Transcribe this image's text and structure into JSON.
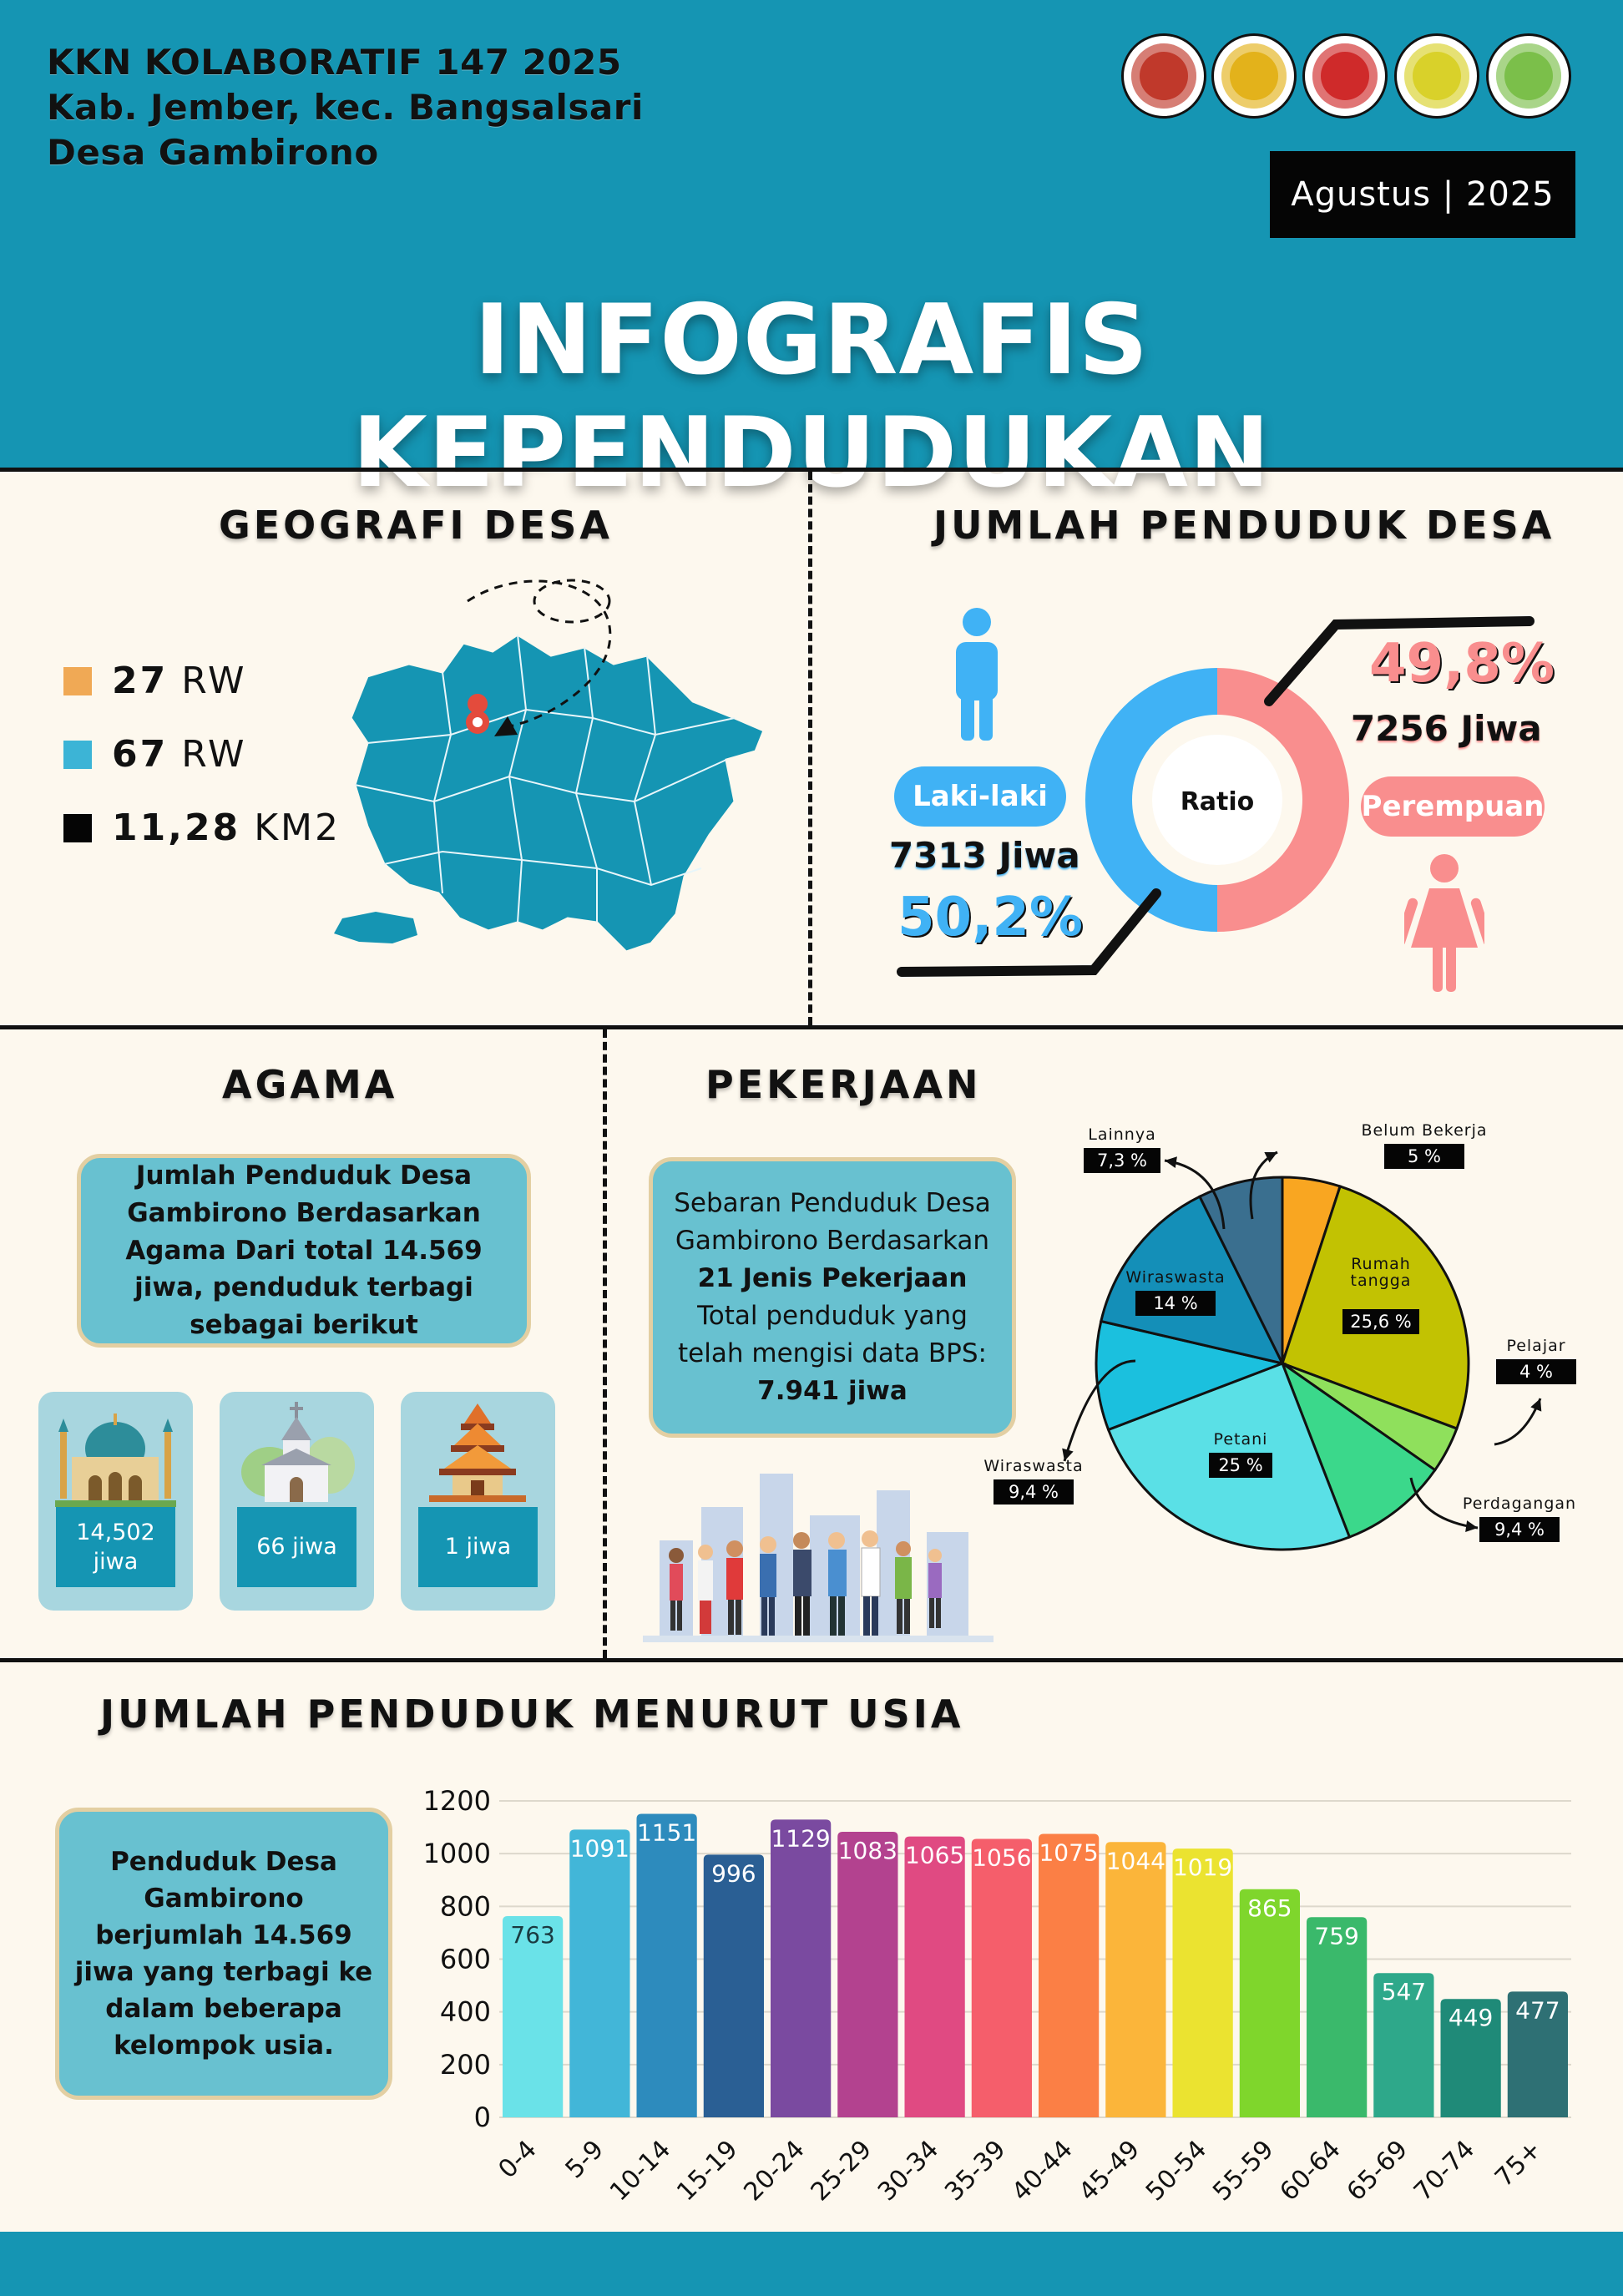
{
  "header": {
    "line1": "KKN KOLABORATIF 147 2025",
    "line2": "Kab. Jember, kec. Bangsalsari",
    "line3": "Desa Gambirono",
    "date": "Agustus | 2025",
    "title": "INFOGRAFIS KEPENDUDUKAN",
    "logos": [
      {
        "icon": "regency-emblem-logo",
        "color": "#c0392b"
      },
      {
        "icon": "universitas-jember-logo",
        "color": "#e3b21b"
      },
      {
        "icon": "institution-emblem-logo",
        "color": "#cf2a2a"
      },
      {
        "icon": "university-yellow-logo",
        "color": "#d9d12a"
      },
      {
        "icon": "kkn-gambirono-logo",
        "color": "#7bbf4a"
      }
    ]
  },
  "geografi": {
    "heading": "GEOGRAFI DESA",
    "items": [
      {
        "value": "27",
        "unit": "RW",
        "color": "#f0a955"
      },
      {
        "value": "67",
        "unit": "RW",
        "color": "#3cb4d6"
      },
      {
        "value": "11,28",
        "unit": "KM2",
        "color": "#050505"
      }
    ]
  },
  "penduduk": {
    "heading": "JUMLAH PENDUDUK DESA",
    "male_label": "Laki-laki",
    "male_count": "7313 Jiwa",
    "male_pct": "50,2%",
    "female_label": "Perempuan",
    "female_count": "7256 Jiwa",
    "female_pct": "49,8%",
    "center_label": "Ratio",
    "male_color": "#40b2f5",
    "female_color": "#f98e8e"
  },
  "agama": {
    "heading": "AGAMA",
    "description": "Jumlah Penduduk Desa Gambirono Berdasarkan Agama Dari total 14.569 jiwa, penduduk terbagi sebagai berikut",
    "items": [
      {
        "icon": "mosque-icon",
        "label": "14,502 jiwa"
      },
      {
        "icon": "church-icon",
        "label": "66 jiwa"
      },
      {
        "icon": "temple-icon",
        "label": "1 jiwa"
      }
    ]
  },
  "pekerjaan": {
    "heading": "PEKERJAAN",
    "desc_line1": "Sebaran Penduduk Desa Gambirono Berdasarkan",
    "desc_bold1": "21 Jenis Pekerjaan",
    "desc_line2": "Total penduduk yang telah mengisi data BPS:",
    "desc_bold2": "7.941 jiwa"
  },
  "usia": {
    "heading": "JUMLAH PENDUDUK MENURUT USIA",
    "description": "Penduduk Desa Gambirono berjumlah 14.569 jiwa yang terbagi ke dalam beberapa kelompok usia."
  },
  "chart_data": [
    {
      "type": "pie",
      "labels": [
        "Belum Bekerja",
        "Rumah tangga",
        "Pelajar",
        "Perdagangan",
        "Petani",
        "Wiraswasta",
        "Wiraswasta",
        "Lainnya"
      ],
      "pct_labels": [
        "5 %",
        "25,6 %",
        "4 %",
        "9,4 %",
        "25 %",
        "9,4 %",
        "14 %",
        "7,3 %"
      ],
      "values": [
        5,
        25.6,
        4,
        9.4,
        25,
        9.4,
        14,
        7.3
      ],
      "colors": [
        "#f9a621",
        "#c2c202",
        "#8fe05c",
        "#3bd88b",
        "#5ae0e6",
        "#1bc0de",
        "#148fb8",
        "#3a6f8f"
      ]
    },
    {
      "type": "bar",
      "categories": [
        "0-4",
        "5-9",
        "10-14",
        "15-19",
        "20-24",
        "25-29",
        "30-34",
        "35-39",
        "40-44",
        "45-49",
        "50-54",
        "55-59",
        "60-64",
        "65-69",
        "70-74",
        "75+"
      ],
      "values": [
        763,
        1091,
        1151,
        996,
        1129,
        1083,
        1065,
        1056,
        1075,
        1044,
        1019,
        865,
        759,
        547,
        449,
        477
      ],
      "ylim": [
        0,
        1200
      ],
      "yticks": [
        0,
        200,
        400,
        600,
        800,
        1000,
        1200
      ],
      "grid": true,
      "colors": [
        "#6ae2e8",
        "#42b6d8",
        "#2d8bbd",
        "#2a5f94",
        "#7a4aa0",
        "#b3428f",
        "#e04a82",
        "#f55e6b",
        "#fb7f45",
        "#fbb53a",
        "#ebe330",
        "#7fd62c",
        "#3ab96b",
        "#2ea88a",
        "#1f8a78",
        "#2e7074"
      ]
    }
  ]
}
